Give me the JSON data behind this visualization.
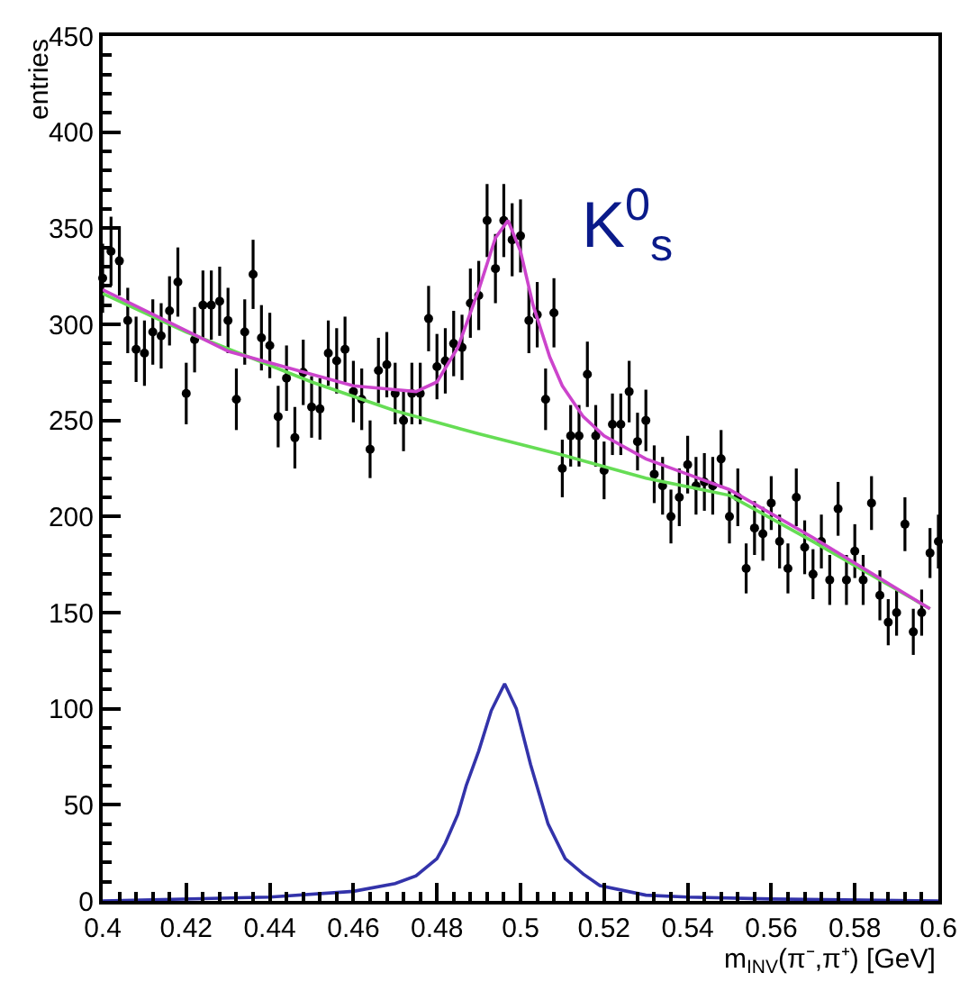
{
  "chart_data": {
    "type": "scatter",
    "xlabel": "m$_{INV}$(π⁻,π⁺) [GeV]",
    "ylabel": "entries",
    "annotations": [
      "K$^{0}$$_{s}$"
    ],
    "xlim": [
      0.4,
      0.6
    ],
    "xticks": [
      {
        "value": 0.4,
        "label": "0.4"
      },
      {
        "value": 0.42,
        "label": "0.42"
      },
      {
        "value": 0.44,
        "label": "0.44"
      },
      {
        "value": 0.46,
        "label": "0.46"
      },
      {
        "value": 0.48,
        "label": "0.48"
      },
      {
        "value": 0.5,
        "label": "0.5"
      },
      {
        "value": 0.52,
        "label": "0.52"
      },
      {
        "value": 0.54,
        "label": "0.54"
      },
      {
        "value": 0.56,
        "label": "0.56"
      },
      {
        "value": 0.58,
        "label": "0.58"
      },
      {
        "value": 0.6,
        "label": "0.6"
      }
    ],
    "ylim": [
      0,
      450
    ],
    "yticks": [
      0,
      50,
      100,
      150,
      200,
      250,
      300,
      350,
      400,
      450
    ],
    "series": [
      {
        "color": "#000000",
        "marker": "circle",
        "x": [
          0.4,
          0.402,
          0.404,
          0.406,
          0.408,
          0.41,
          0.412,
          0.414,
          0.416,
          0.418,
          0.42,
          0.422,
          0.424,
          0.426,
          0.428,
          0.43,
          0.432,
          0.434,
          0.436,
          0.438,
          0.44,
          0.442,
          0.444,
          0.446,
          0.448,
          0.45,
          0.452,
          0.454,
          0.456,
          0.458,
          0.46,
          0.462,
          0.464,
          0.466,
          0.468,
          0.47,
          0.472,
          0.474,
          0.476,
          0.478,
          0.48,
          0.482,
          0.484,
          0.486,
          0.488,
          0.49,
          0.492,
          0.494,
          0.496,
          0.498,
          0.5,
          0.502,
          0.504,
          0.506,
          0.508,
          0.51,
          0.512,
          0.514,
          0.516,
          0.518,
          0.52,
          0.522,
          0.524,
          0.526,
          0.528,
          0.53,
          0.532,
          0.534,
          0.536,
          0.538,
          0.54,
          0.542,
          0.544,
          0.546,
          0.548,
          0.55,
          0.552,
          0.554,
          0.556,
          0.558,
          0.56,
          0.562,
          0.564,
          0.566,
          0.568,
          0.57,
          0.572,
          0.574,
          0.576,
          0.578,
          0.58,
          0.582,
          0.584,
          0.586,
          0.588,
          0.59,
          0.592,
          0.594,
          0.596,
          0.598,
          0.6
        ],
        "values": [
          324,
          338,
          333,
          302,
          287,
          285,
          296,
          294,
          307,
          322,
          264,
          292,
          310,
          310,
          312,
          302,
          261,
          296,
          326,
          293,
          289,
          252,
          272,
          241,
          275,
          257,
          256,
          285,
          281,
          287,
          265,
          261,
          235,
          276,
          279,
          264,
          250,
          264,
          264,
          303,
          278,
          281,
          290,
          288,
          311,
          315,
          354,
          329,
          354,
          344,
          346,
          302,
          305,
          261,
          306,
          225,
          242,
          242,
          274,
          242,
          224,
          248,
          248,
          265,
          239,
          250,
          222,
          216,
          200,
          210,
          227,
          216,
          218,
          216,
          230,
          200,
          210,
          173,
          194,
          191,
          207,
          187,
          173,
          210,
          184,
          170,
          187,
          167,
          204,
          167,
          182,
          167,
          207,
          159,
          145,
          150,
          196,
          140,
          150,
          181,
          187
        ],
        "errors": [
          18,
          18,
          18,
          17,
          17,
          17,
          17,
          17,
          18,
          18,
          16,
          17,
          18,
          18,
          18,
          17,
          16,
          17,
          18,
          17,
          17,
          16,
          17,
          16,
          17,
          16,
          16,
          17,
          17,
          17,
          16,
          16,
          15,
          17,
          17,
          16,
          16,
          16,
          16,
          17,
          17,
          17,
          17,
          17,
          18,
          18,
          19,
          18,
          19,
          19,
          19,
          17,
          17,
          16,
          18,
          15,
          16,
          16,
          17,
          16,
          15,
          16,
          16,
          16,
          15,
          16,
          15,
          15,
          14,
          15,
          15,
          15,
          15,
          15,
          15,
          14,
          15,
          13,
          14,
          14,
          14,
          14,
          13,
          15,
          14,
          13,
          14,
          13,
          14,
          13,
          14,
          13,
          14,
          13,
          12,
          12,
          14,
          12,
          12,
          13,
          14
        ]
      },
      {
        "type": "line",
        "color": "#66dd55",
        "marker": "none",
        "x": [
          0.4,
          0.42,
          0.45,
          0.47,
          0.49,
          0.51,
          0.53,
          0.55,
          0.57,
          0.598
        ],
        "values": [
          316,
          296,
          270,
          255,
          243,
          232,
          220,
          211,
          187,
          152
        ]
      },
      {
        "type": "line",
        "color": "#cc44cc",
        "marker": "none",
        "x": [
          0.4,
          0.43,
          0.46,
          0.47,
          0.475,
          0.48,
          0.485,
          0.49,
          0.494,
          0.497,
          0.5,
          0.503,
          0.507,
          0.51,
          0.515,
          0.52,
          0.53,
          0.54,
          0.55,
          0.57,
          0.598
        ],
        "values": [
          318,
          286,
          268,
          266,
          265,
          270,
          288,
          318,
          345,
          354,
          338,
          310,
          283,
          268,
          252,
          242,
          230,
          222,
          214,
          189,
          152
        ]
      },
      {
        "type": "line",
        "color": "#3333aa",
        "marker": "none",
        "x": [
          0.4,
          0.44,
          0.46,
          0.47,
          0.475,
          0.48,
          0.482,
          0.485,
          0.487,
          0.49,
          0.493,
          0.4962,
          0.499,
          0.5024,
          0.5066,
          0.5107,
          0.515,
          0.519,
          0.53,
          0.54,
          0.56,
          0.6
        ],
        "values": [
          0,
          2,
          5,
          9,
          13,
          22,
          30,
          45,
          60,
          78,
          99,
          113,
          100,
          71,
          40,
          22,
          14,
          8,
          3,
          2,
          1,
          0
        ]
      }
    ]
  }
}
